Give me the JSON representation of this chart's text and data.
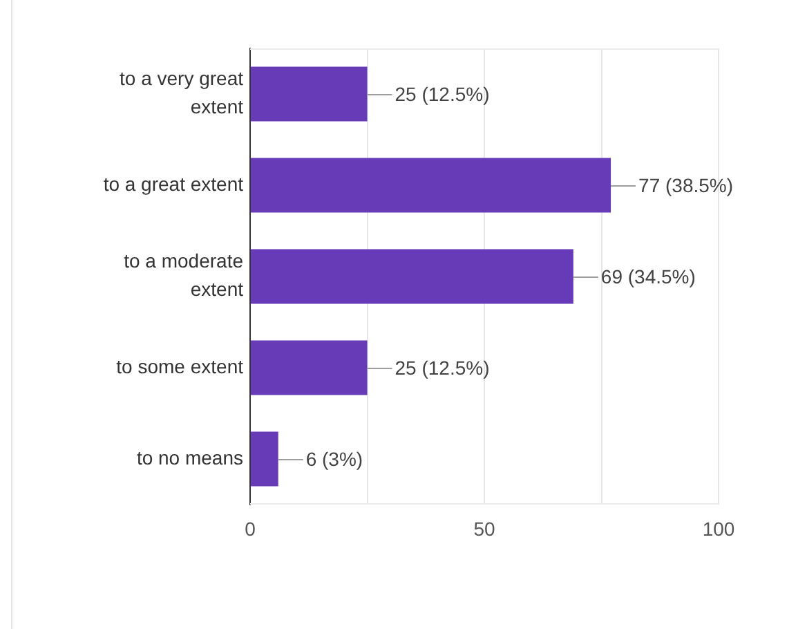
{
  "chart_data": {
    "type": "bar",
    "orientation": "horizontal",
    "categories": [
      "to a very great extent",
      "to a great extent",
      "to a moderate extent",
      "to some extent",
      "to no means"
    ],
    "values": [
      25,
      77,
      69,
      25,
      6
    ],
    "color": "#673ab7",
    "value_labels": [
      "25 (12.5%)",
      "77 (38.5%)",
      "69 (34.5%)",
      "25 (12.5%)",
      "6 (3%)"
    ],
    "xlim": [
      0,
      100
    ],
    "xticks": [
      0,
      {
        "value": 25,
        "label": null
      },
      50,
      {
        "value": 75,
        "label": null
      },
      100
    ],
    "grid": "x"
  }
}
